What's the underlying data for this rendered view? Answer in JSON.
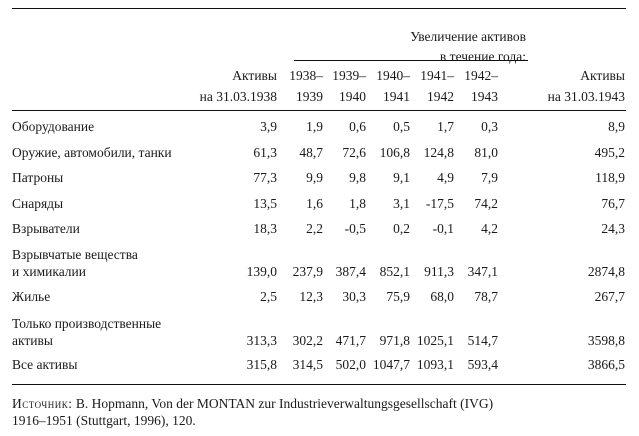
{
  "table": {
    "group_header": [
      "Увеличение активов",
      "в течение года:"
    ],
    "columns": [
      {
        "line1": "Активы",
        "line2": "на 31.03.1938"
      },
      {
        "line1": "1938–",
        "line2": "1939"
      },
      {
        "line1": "1939–",
        "line2": "1940"
      },
      {
        "line1": "1940–",
        "line2": "1941"
      },
      {
        "line1": "1941–",
        "line2": "1942"
      },
      {
        "line1": "1942–",
        "line2": "1943"
      },
      {
        "line1": "Активы",
        "line2": "на 31.03.1943"
      }
    ],
    "rows": [
      {
        "label": [
          "Оборудование"
        ],
        "values": [
          "3,9",
          "1,9",
          "0,6",
          "0,5",
          "1,7",
          "0,3",
          "8,9"
        ]
      },
      {
        "label": [
          "Оружие, автомобили, танки"
        ],
        "values": [
          "61,3",
          "48,7",
          "72,6",
          "106,8",
          "124,8",
          "81,0",
          "495,2"
        ]
      },
      {
        "label": [
          "Патроны"
        ],
        "values": [
          "77,3",
          "9,9",
          "9,8",
          "9,1",
          "4,9",
          "7,9",
          "118,9"
        ]
      },
      {
        "label": [
          "Снаряды"
        ],
        "values": [
          "13,5",
          "1,6",
          "1,8",
          "3,1",
          "-17,5",
          "74,2",
          "76,7"
        ]
      },
      {
        "label": [
          "Взрыватели"
        ],
        "values": [
          "18,3",
          "2,2",
          "-0,5",
          "0,2",
          "-0,1",
          "4,2",
          "24,3"
        ]
      },
      {
        "label": [
          "Взрывчатые вещества",
          "и химикалии"
        ],
        "values": [
          "139,0",
          "237,9",
          "387,4",
          "852,1",
          "911,3",
          "347,1",
          "2874,8"
        ]
      },
      {
        "label": [
          "Жилье"
        ],
        "values": [
          "2,5",
          "12,3",
          "30,3",
          "75,9",
          "68,0",
          "78,7",
          "267,7"
        ]
      },
      {
        "label": [
          "Только производственные",
          "активы"
        ],
        "values": [
          "313,3",
          "302,2",
          "471,7",
          "971,8",
          "1025,1",
          "514,7",
          "3598,8"
        ]
      },
      {
        "label": [
          "Все активы"
        ],
        "values": [
          "315,8",
          "314,5",
          "502,0",
          "1047,7",
          "1093,1",
          "593,4",
          "3866,5"
        ]
      }
    ]
  },
  "source": {
    "label": "Источник:",
    "line1": "B. Hopmann, Von der MONTAN zur Industrieverwaltungsgesellschaft (IVG)",
    "line2": "1916–1951 (Stuttgart, 1996), 120."
  }
}
